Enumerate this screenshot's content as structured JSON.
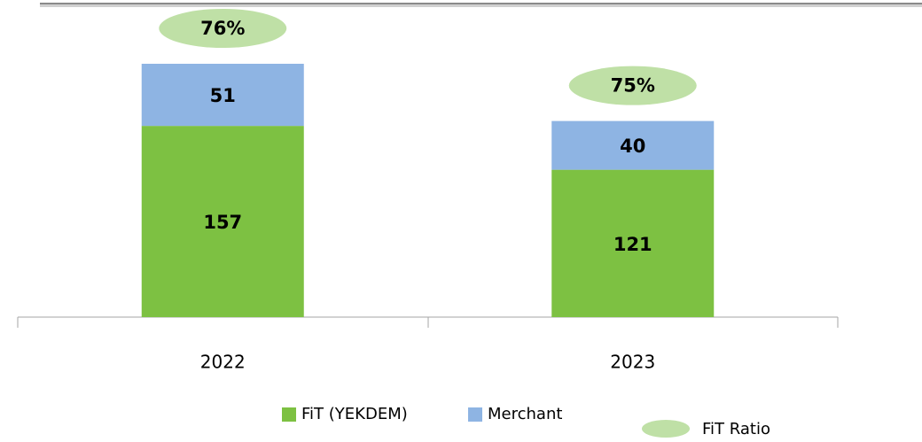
{
  "chart_data": {
    "type": "stacked_bar",
    "categories": [
      "2022",
      "2023"
    ],
    "series": [
      {
        "name": "FiT (YEKDEM)",
        "color": "#7dc142",
        "values": [
          157,
          121
        ]
      },
      {
        "name": "Merchant",
        "color": "#8eb4e3",
        "values": [
          51,
          40
        ]
      }
    ],
    "ratio": {
      "name": "FiT Ratio",
      "color": "#bfe0a6",
      "values": [
        76,
        75
      ],
      "value_labels": [
        "76%",
        "75%"
      ]
    }
  }
}
